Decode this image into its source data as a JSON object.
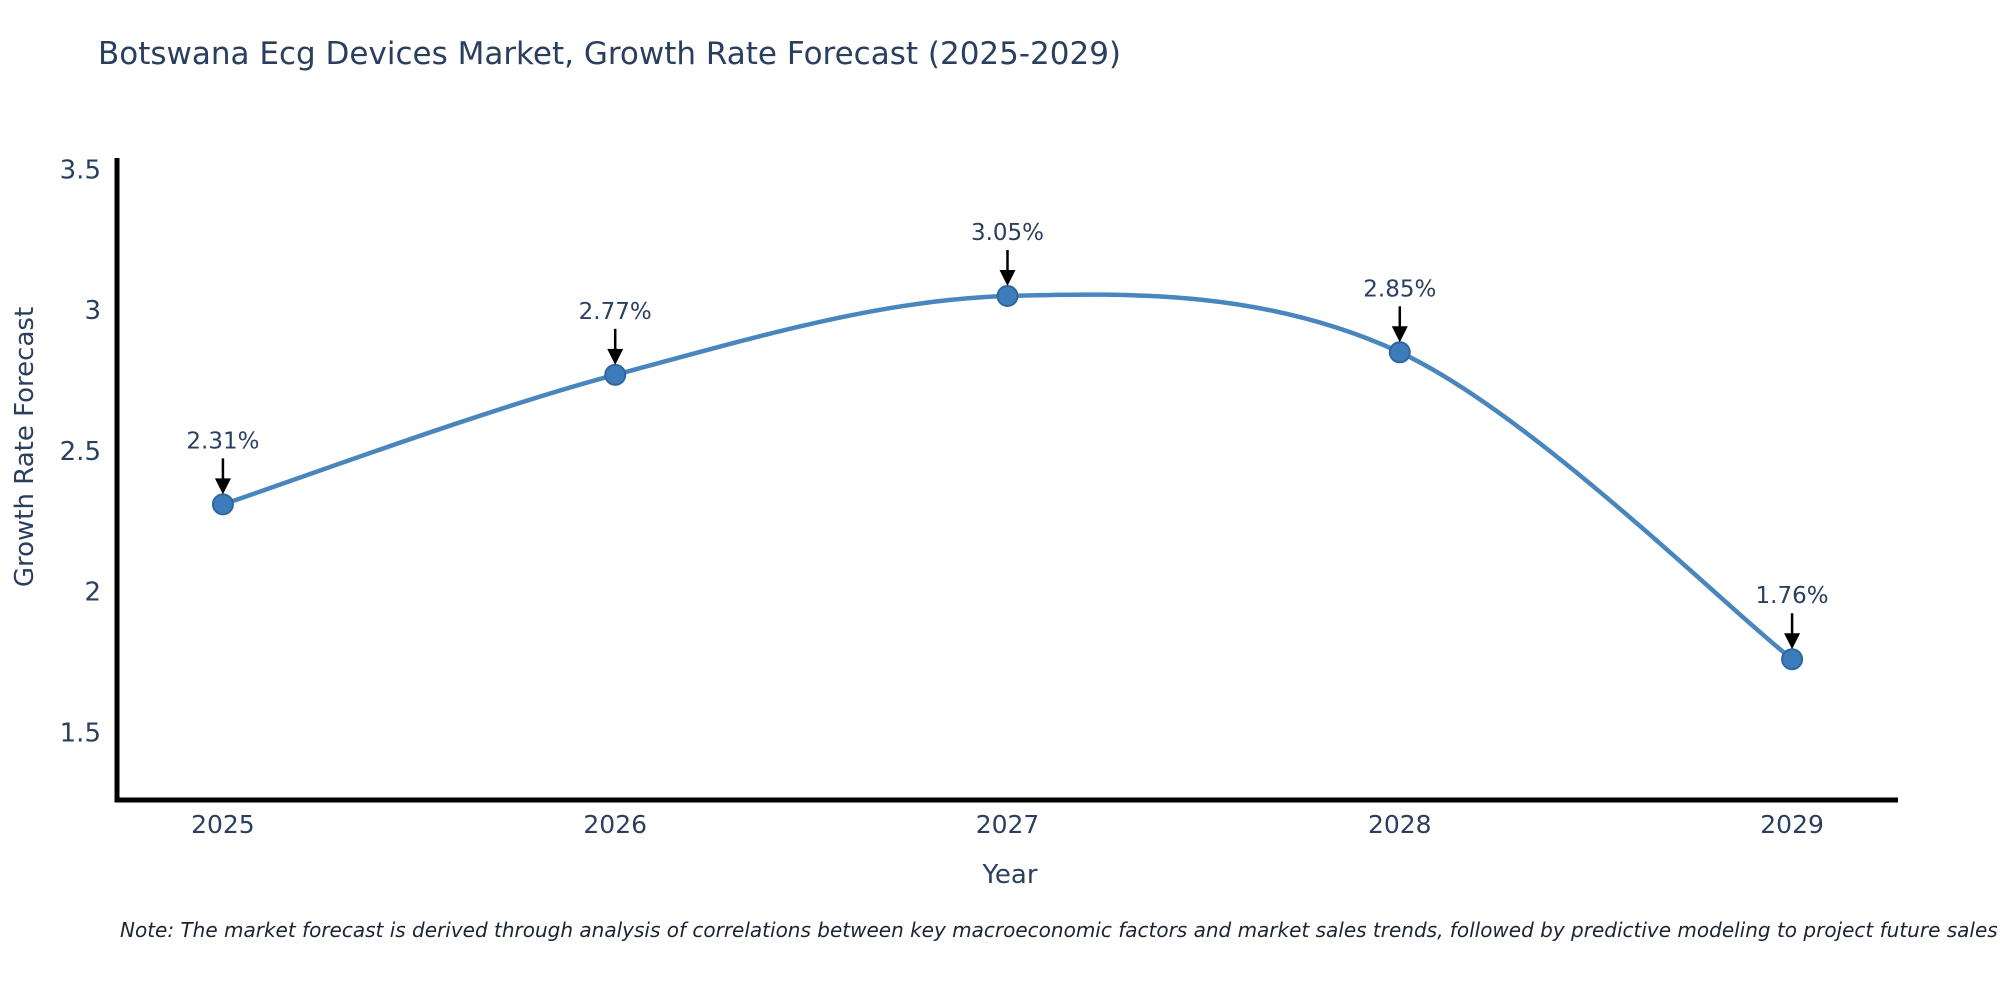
{
  "title": "Botswana Ecg Devices Market, Growth Rate Forecast (2025-2029)",
  "note": "Note: The market forecast is derived through analysis of correlations between key macroeconomic factors and market sales trends, followed by predictive modeling to project future sales",
  "colors": {
    "title_text": "#2a3f5f",
    "tick_text": "#2a3f5f",
    "axis_line": "#000000",
    "line": "#4a86be",
    "marker_fill": "#3c7cba",
    "marker_stroke": "#2f689f",
    "arrow": "#000000",
    "background": "#ffffff"
  },
  "chart_data": {
    "type": "line",
    "title": "Botswana Ecg Devices Market, Growth Rate Forecast (2025-2029)",
    "xlabel": "Year",
    "ylabel": "Growth Rate Forecast",
    "x": [
      2025,
      2026,
      2027,
      2028,
      2029
    ],
    "values": [
      2.31,
      2.77,
      3.05,
      2.85,
      1.76
    ],
    "labels": [
      "2.31%",
      "2.77%",
      "3.05%",
      "2.85%",
      "1.76%"
    ],
    "series": [
      {
        "name": "Growth Rate Forecast",
        "values": [
          2.31,
          2.77,
          3.05,
          2.85,
          1.76
        ]
      }
    ],
    "yticks": [
      1.5,
      2,
      2.5,
      3,
      3.5
    ],
    "ylim": [
      1.26,
      3.54
    ],
    "xlim": [
      2024.73,
      2029.27
    ],
    "grid": false,
    "legend": "none",
    "line_shape": "spline",
    "annotation_style": "value label above point with downward black arrow"
  }
}
